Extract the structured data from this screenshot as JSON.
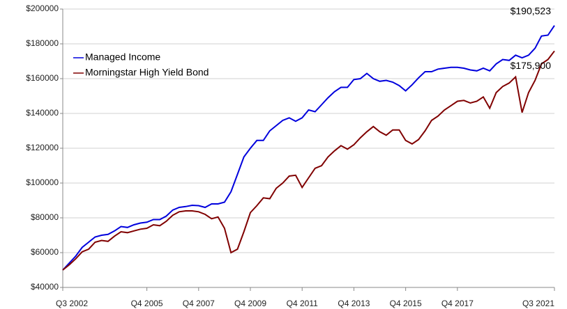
{
  "chart_data": {
    "type": "line",
    "categories": [
      "Q3 2002",
      null,
      null,
      null,
      null,
      null,
      null,
      null,
      null,
      null,
      null,
      null,
      null,
      "Q4 2005",
      null,
      null,
      null,
      null,
      null,
      null,
      null,
      "Q4 2007",
      null,
      null,
      null,
      null,
      null,
      null,
      null,
      "Q4 2009",
      null,
      null,
      null,
      null,
      null,
      null,
      null,
      "Q4 2011",
      null,
      null,
      null,
      null,
      null,
      null,
      null,
      "Q4 2013",
      null,
      null,
      null,
      null,
      null,
      null,
      null,
      "Q4 2015",
      null,
      null,
      null,
      null,
      null,
      null,
      null,
      "Q4 2017",
      null,
      null,
      null,
      null,
      null,
      null,
      null,
      null,
      null,
      null,
      null,
      null,
      null,
      null,
      "Q3 2021"
    ],
    "series": [
      {
        "name": "Managed Income",
        "color": "#0000dd",
        "values": [
          50000,
          54000,
          58000,
          63000,
          66000,
          69000,
          70000,
          70500,
          72500,
          75000,
          74500,
          76000,
          77000,
          77500,
          79000,
          79000,
          81000,
          84500,
          86000,
          86500,
          87200,
          87000,
          86000,
          88000,
          88000,
          89000,
          95000,
          105000,
          115000,
          120000,
          124500,
          124500,
          130000,
          133000,
          136000,
          137500,
          135500,
          137500,
          142000,
          141000,
          145000,
          149000,
          152500,
          155000,
          155000,
          159500,
          160000,
          163000,
          160000,
          158500,
          159000,
          158000,
          156000,
          153000,
          156500,
          160500,
          164000,
          164000,
          165500,
          166000,
          166500,
          166500,
          166000,
          165000,
          164500,
          166000,
          164500,
          168500,
          171000,
          170500,
          173500,
          172000,
          173500,
          177500,
          184500,
          185000,
          190523
        ]
      },
      {
        "name": "Morningstar High Yield Bond",
        "color": "#800000",
        "values": [
          50000,
          53000,
          56500,
          60500,
          62000,
          66000,
          67000,
          66500,
          69500,
          72000,
          71500,
          72500,
          73500,
          74000,
          76000,
          75500,
          78000,
          81500,
          83500,
          84000,
          84000,
          83500,
          82000,
          79500,
          80500,
          74000,
          60000,
          62000,
          72000,
          83000,
          87000,
          91500,
          91000,
          97000,
          100000,
          104000,
          104500,
          97500,
          103000,
          108500,
          110000,
          115000,
          118500,
          121500,
          119500,
          122000,
          126000,
          129500,
          132500,
          129500,
          127500,
          130500,
          130500,
          124500,
          122500,
          125000,
          130000,
          136000,
          138500,
          142000,
          144500,
          147000,
          147500,
          146000,
          147000,
          149500,
          143000,
          152000,
          155500,
          157500,
          161000,
          140500,
          152000,
          159000,
          168500,
          171000,
          175900
        ]
      }
    ],
    "annotations": [
      "$190,523",
      "$175,900"
    ],
    "ylim": [
      40000,
      200000
    ],
    "yticks": [
      {
        "value": 40000,
        "label": "$40000"
      },
      {
        "value": 60000,
        "label": "$60000"
      },
      {
        "value": 80000,
        "label": "$80000"
      },
      {
        "value": 100000,
        "label": "$100000"
      },
      {
        "value": 120000,
        "label": "$120000"
      },
      {
        "value": 140000,
        "label": "$140000"
      },
      {
        "value": 160000,
        "label": "$160000"
      },
      {
        "value": 180000,
        "label": "$180000"
      },
      {
        "value": 200000,
        "label": "$200000"
      }
    ],
    "grid": true,
    "legend": "upper left"
  }
}
